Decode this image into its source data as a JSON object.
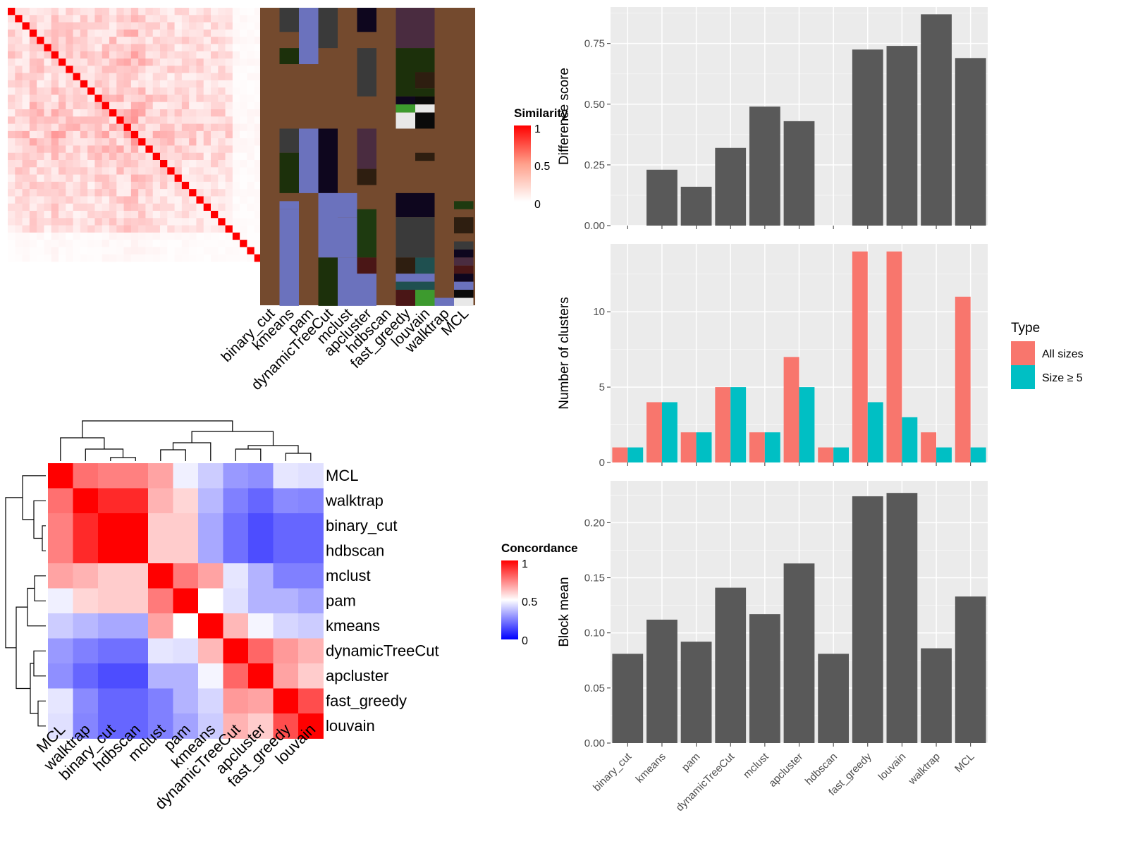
{
  "chart_data": [
    {
      "id": "similarity_heatmap",
      "type": "heatmap",
      "title": "",
      "n": 35,
      "diagonal_value": 1,
      "legend": {
        "title": "Similarity",
        "ticks": [
          "0",
          "0.5",
          "1"
        ],
        "low_color": "#ffffff",
        "high_color": "#ff0000"
      },
      "row_means": [
        0.12,
        0.18,
        0.15,
        0.22,
        0.2,
        0.14,
        0.25,
        0.2,
        0.18,
        0.16,
        0.15,
        0.17,
        0.2,
        0.22,
        0.24,
        0.26,
        0.28,
        0.3,
        0.27,
        0.22,
        0.2,
        0.18,
        0.16,
        0.14,
        0.12,
        0.13,
        0.12,
        0.1,
        0.11,
        0.1,
        0.09,
        0.08,
        0.08,
        0.07,
        0.06
      ]
    },
    {
      "id": "cluster_assignment_heatmap",
      "type": "heatmap",
      "columns": [
        "binary_cut",
        "kmeans",
        "pam",
        "dynamicTreeCut",
        "mclust",
        "apcluster",
        "hdbscan",
        "fast_greedy",
        "louvain",
        "walktrap",
        "MCL"
      ],
      "background_color": "#744a2e",
      "palette": [
        "#744a2e",
        "#3a3a3a",
        "#6b72bd",
        "#1c300b",
        "#0e061e",
        "#4a2c40",
        "#1e3a10",
        "#3d9a2e",
        "#e8e8e8",
        "#0a0a0a",
        "#2e1e10",
        "#4a1616",
        "#1f5050"
      ]
    },
    {
      "id": "concordance_heatmap",
      "type": "heatmap",
      "row_labels": [
        "MCL",
        "walktrap",
        "binary_cut",
        "hdbscan",
        "mclust",
        "pam",
        "kmeans",
        "dynamicTreeCut",
        "apcluster",
        "fast_greedy",
        "louvain"
      ],
      "col_labels": [
        "MCL",
        "walktrap",
        "binary_cut",
        "hdbscan",
        "mclust",
        "pam",
        "kmeans",
        "dynamicTreeCut",
        "apcluster",
        "fast_greedy",
        "louvain"
      ],
      "legend": {
        "title": "Concordance",
        "ticks": [
          "0",
          "0.5",
          "1"
        ],
        "low_color": "#0000ff",
        "mid_color": "#ffffff",
        "high_color": "#ff0000"
      },
      "matrix": [
        [
          1.0,
          0.78,
          0.75,
          0.75,
          0.68,
          0.47,
          0.4,
          0.3,
          0.28,
          0.45,
          0.44
        ],
        [
          0.78,
          1.0,
          0.92,
          0.92,
          0.65,
          0.58,
          0.36,
          0.25,
          0.2,
          0.27,
          0.26
        ],
        [
          0.75,
          0.92,
          1.0,
          1.0,
          0.6,
          0.6,
          0.33,
          0.22,
          0.15,
          0.2,
          0.2
        ],
        [
          0.75,
          0.92,
          1.0,
          1.0,
          0.6,
          0.6,
          0.33,
          0.22,
          0.15,
          0.2,
          0.2
        ],
        [
          0.68,
          0.65,
          0.6,
          0.6,
          1.0,
          0.76,
          0.68,
          0.45,
          0.35,
          0.25,
          0.25
        ],
        [
          0.47,
          0.58,
          0.6,
          0.6,
          0.76,
          1.0,
          0.5,
          0.44,
          0.35,
          0.35,
          0.32
        ],
        [
          0.4,
          0.36,
          0.33,
          0.33,
          0.68,
          0.5,
          1.0,
          0.64,
          0.48,
          0.42,
          0.4
        ],
        [
          0.3,
          0.25,
          0.22,
          0.22,
          0.45,
          0.44,
          0.64,
          1.0,
          0.8,
          0.7,
          0.65
        ],
        [
          0.28,
          0.2,
          0.15,
          0.15,
          0.35,
          0.35,
          0.48,
          0.8,
          1.0,
          0.68,
          0.6
        ],
        [
          0.45,
          0.27,
          0.2,
          0.2,
          0.25,
          0.35,
          0.42,
          0.7,
          0.68,
          1.0,
          0.85
        ],
        [
          0.44,
          0.26,
          0.2,
          0.2,
          0.25,
          0.32,
          0.4,
          0.65,
          0.6,
          0.85,
          1.0
        ]
      ]
    },
    {
      "id": "difference_score",
      "type": "bar",
      "categories": [
        "binary_cut",
        "kmeans",
        "pam",
        "dynamicTreeCut",
        "mclust",
        "apcluster",
        "hdbscan",
        "fast_greedy",
        "louvain",
        "walktrap",
        "MCL"
      ],
      "values": [
        0,
        0.23,
        0.16,
        0.32,
        0.49,
        0.43,
        0,
        0.725,
        0.74,
        0.87,
        0.69
      ],
      "ylabel": "Difference score",
      "ylim": [
        0,
        0.9
      ],
      "yticks": [
        "0.00",
        "0.25",
        "0.50",
        "0.75"
      ],
      "bar_color": "#595959"
    },
    {
      "id": "number_of_clusters",
      "type": "bar",
      "categories": [
        "binary_cut",
        "kmeans",
        "pam",
        "dynamicTreeCut",
        "mclust",
        "apcluster",
        "hdbscan",
        "fast_greedy",
        "louvain",
        "walktrap",
        "MCL"
      ],
      "series": [
        {
          "name": "All sizes",
          "values": [
            1,
            4,
            2,
            5,
            2,
            7,
            1,
            14,
            14,
            2,
            11
          ],
          "color": "#f8766d"
        },
        {
          "name": "Size ≥ 5",
          "values": [
            1,
            4,
            2,
            5,
            2,
            5,
            1,
            4,
            3,
            1,
            1
          ],
          "color": "#00bfc4"
        }
      ],
      "ylabel": "Number of clusters",
      "ylim": [
        0,
        14.5
      ],
      "yticks": [
        "0",
        "5",
        "10"
      ],
      "legend": {
        "title": "Type",
        "position": "right"
      }
    },
    {
      "id": "block_mean",
      "type": "bar",
      "categories": [
        "binary_cut",
        "kmeans",
        "pam",
        "dynamicTreeCut",
        "mclust",
        "apcluster",
        "hdbscan",
        "fast_greedy",
        "louvain",
        "walktrap",
        "MCL"
      ],
      "values": [
        0.081,
        0.112,
        0.092,
        0.141,
        0.117,
        0.163,
        0.081,
        0.224,
        0.227,
        0.086,
        0.133
      ],
      "ylabel": "Block mean",
      "ylim": [
        0,
        0.238
      ],
      "yticks": [
        "0.00",
        "0.05",
        "0.10",
        "0.15",
        "0.20"
      ],
      "bar_color": "#595959"
    }
  ]
}
